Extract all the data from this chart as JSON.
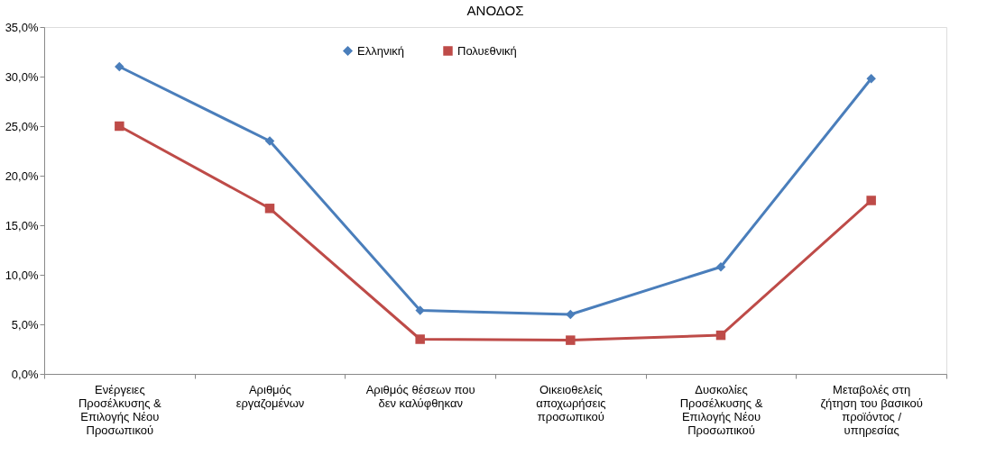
{
  "chart_data": {
    "type": "line",
    "title": "ΑΝΟΔΟΣ",
    "categories": [
      "Ενέργειες Προσέλκυσης & Επιλογής Νέου Προσωπικού",
      "Αριθμός εργαζομένων",
      "Αριθμός θέσεων που δεν καλύφθηκαν",
      "Οικειοθελείς αποχωρήσεις προσωπικού",
      "Δυσκολίες Προσέλκυσης & Επιλογής Νέου Προσωπικού",
      "Μεταβολές στη ζήτηση του βασικού προϊόντος / υπηρεσίας"
    ],
    "series": [
      {
        "name": "Ελληνική",
        "color": "#4a7ebb",
        "marker": "diamond",
        "values": [
          31.0,
          23.5,
          6.4,
          6.0,
          10.8,
          29.8
        ]
      },
      {
        "name": "Πολυεθνική",
        "color": "#be4b48",
        "marker": "square",
        "values": [
          25.0,
          16.7,
          3.5,
          3.4,
          3.9,
          17.5
        ]
      }
    ],
    "ylim": [
      0,
      35
    ],
    "yticks": [
      {
        "value": 0,
        "label": "0,0%"
      },
      {
        "value": 5,
        "label": "5,0%"
      },
      {
        "value": 10,
        "label": "10,0%"
      },
      {
        "value": 15,
        "label": "15,0%"
      },
      {
        "value": 20,
        "label": "20,0%"
      },
      {
        "value": 25,
        "label": "25,0%"
      },
      {
        "value": 30,
        "label": "30,0%"
      },
      {
        "value": 35,
        "label": "35,0%"
      }
    ],
    "grid": false,
    "legend": "top",
    "line_style": "solid"
  }
}
